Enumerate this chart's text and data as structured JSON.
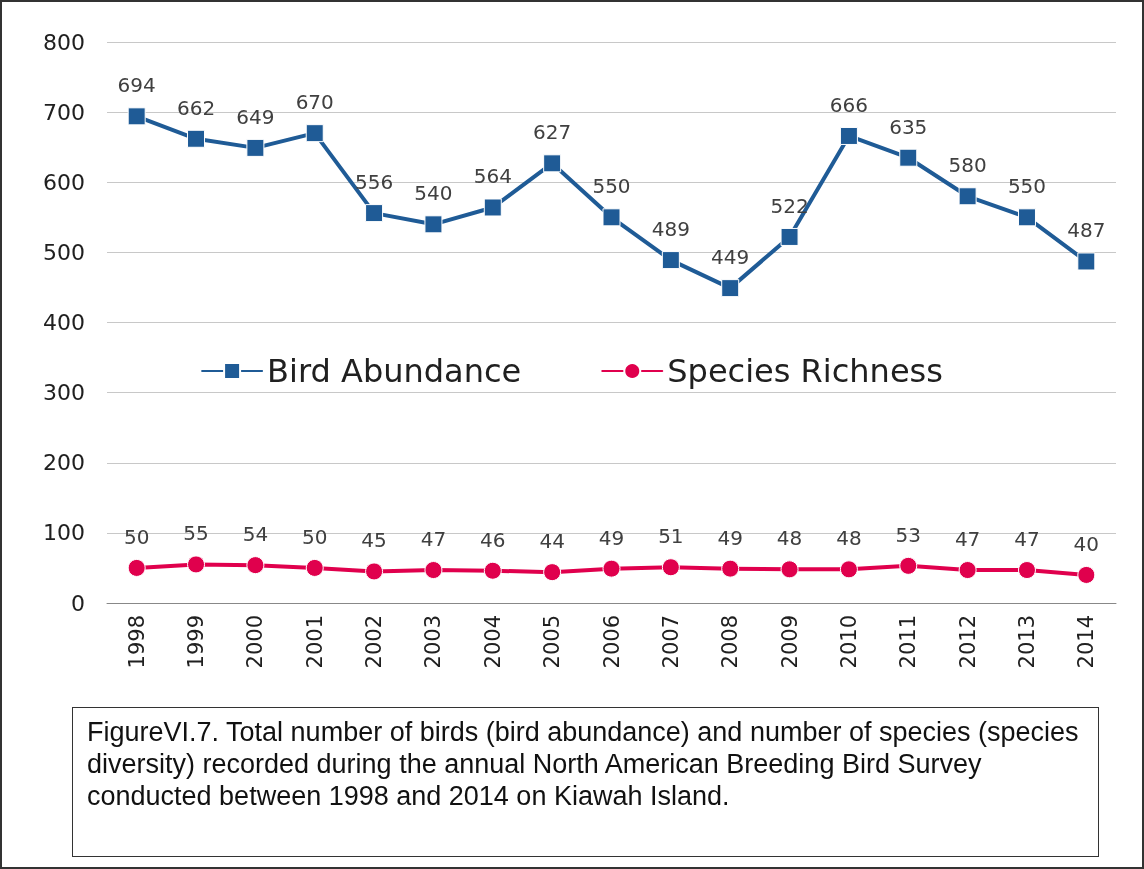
{
  "chart_data": {
    "type": "line",
    "categories": [
      "1998",
      "1999",
      "2000",
      "2001",
      "2002",
      "2003",
      "2004",
      "2005",
      "2006",
      "2007",
      "2008",
      "2009",
      "2010",
      "2011",
      "2012",
      "2013",
      "2014"
    ],
    "series": [
      {
        "name": "Bird Abundance",
        "color": "#1f5b96",
        "marker": "square",
        "values": [
          694,
          662,
          649,
          670,
          556,
          540,
          564,
          627,
          550,
          489,
          449,
          522,
          666,
          635,
          580,
          550,
          487
        ]
      },
      {
        "name": "Species Richness",
        "color": "#e0004d",
        "marker": "circle",
        "values": [
          50,
          55,
          54,
          50,
          45,
          47,
          46,
          44,
          49,
          51,
          49,
          48,
          48,
          53,
          47,
          47,
          40
        ]
      }
    ],
    "ylim": [
      0,
      800
    ],
    "yticks": [
      0,
      100,
      200,
      300,
      400,
      500,
      600,
      700,
      800
    ],
    "grid": "y",
    "legend": "center",
    "data_labels": true,
    "annotations": [
      "FigureVI.7. Total number of birds (bird abundance) and number of species (species diversity) recorded during the annual North American Breeding Bird Survey conducted between 1998 and 2014 on Kiawah Island."
    ]
  }
}
